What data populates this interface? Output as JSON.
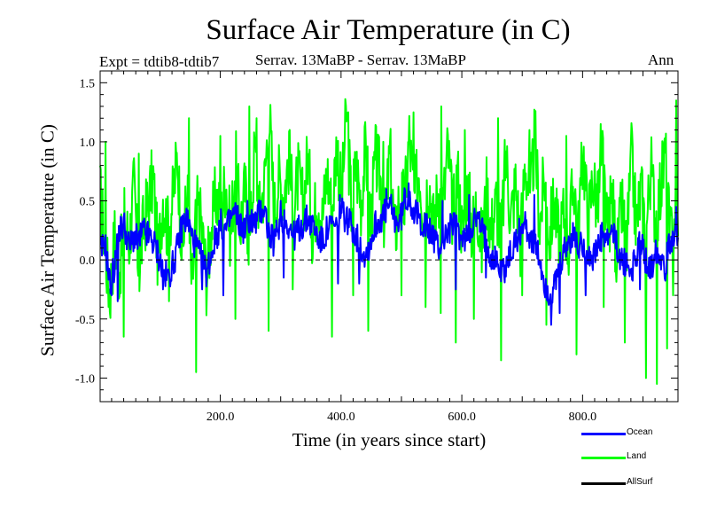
{
  "chart_data": {
    "type": "line",
    "title": "Surface Air Temperature (in C)",
    "subtitle_left": "Expt = tdtib8-tdtib7",
    "subtitle_center": "Serrav.   13MaBP - Serrav.   13MaBP",
    "subtitle_right": "Ann",
    "xlabel": "Time (in years since start)",
    "ylabel": "Surface Air Temperature (in C)",
    "xlim": [
      1,
      958
    ],
    "ylim": [
      -1.2,
      1.6
    ],
    "xticks_major": [
      200,
      400,
      600,
      800
    ],
    "xtick_labels": [
      "200.0",
      "400.0",
      "600.0",
      "800.0"
    ],
    "yticks_major": [
      -1.0,
      -0.5,
      0.0,
      0.5,
      1.0,
      1.5
    ],
    "ytick_labels": [
      "-1.0",
      "-0.5",
      "0.0",
      "0.5",
      "1.0",
      "1.5"
    ],
    "zero_line": "dashed",
    "series": [
      {
        "name": "Land",
        "color": "#00ff00",
        "step": 8,
        "x_start": 1,
        "values": [
          0.55,
          0.12,
          -0.3,
          0.2,
          -0.1,
          0.35,
          0.15,
          0.62,
          -0.1,
          0.3,
          0.5,
          0.7,
          0.0,
          0.55,
          0.25,
          0.5,
          0.9,
          0.05,
          0.6,
          -0.25,
          0.45,
          0.3,
          -0.15,
          0.25,
          0.55,
          0.35,
          0.7,
          0.2,
          0.85,
          0.3,
          0.6,
          0.1,
          0.95,
          0.4,
          0.65,
          1.3,
          0.4,
          0.7,
          0.55,
          0.85,
          0.45,
          0.7,
          0.45,
          0.9,
          0.2,
          0.6,
          0.35,
          0.75,
          0.4,
          1.0,
          0.5,
          1.25,
          0.45,
          0.8,
          0.5,
          0.95,
          0.3,
          0.85,
          0.7,
          0.3,
          0.9,
          0.2,
          0.55,
          0.45,
          1.05,
          0.5,
          0.8,
          0.4,
          0.7,
          0.3,
          0.6,
          0.45,
          0.95,
          0.35,
          0.75,
          0.2,
          0.65,
          0.25,
          0.5,
          0.1,
          0.6,
          0.25,
          0.5,
          0.15,
          0.9,
          0.35,
          0.65,
          0.15,
          0.85,
          0.45,
          1.05,
          0.3,
          0.7,
          0.2,
          0.5,
          0.15,
          0.4,
          0.1,
          0.7,
          0.25,
          0.95,
          0.3,
          0.7,
          0.45,
          0.9,
          0.2,
          0.55,
          0.0,
          0.45,
          0.1,
          0.85,
          0.3,
          0.6,
          0.2,
          0.8,
          0.35,
          0.6,
          0.9,
          0.15,
          0.4
        ],
        "minima": [
          [
            40,
            -0.65
          ],
          [
            115,
            -0.35
          ],
          [
            160,
            -0.95
          ],
          [
            225,
            -0.5
          ],
          [
            280,
            -0.6
          ],
          [
            320,
            -0.25
          ],
          [
            385,
            -0.65
          ],
          [
            420,
            -0.3
          ],
          [
            445,
            -0.6
          ],
          [
            500,
            -0.3
          ],
          [
            540,
            -0.4
          ],
          [
            565,
            -0.45
          ],
          [
            590,
            -0.7
          ],
          [
            620,
            -0.5
          ],
          [
            665,
            -0.85
          ],
          [
            700,
            -0.3
          ],
          [
            740,
            -0.55
          ],
          [
            790,
            -0.8
          ],
          [
            835,
            -0.4
          ],
          [
            870,
            -0.7
          ],
          [
            905,
            -1.0
          ],
          [
            923,
            -1.05
          ],
          [
            940,
            -0.75
          ],
          [
            950,
            -0.3
          ]
        ],
        "maxima": [
          [
            10,
            1.0
          ],
          [
            65,
            0.9
          ],
          [
            148,
            1.2
          ],
          [
            200,
            1.05
          ],
          [
            248,
            1.3
          ],
          [
            260,
            1.2
          ],
          [
            315,
            1.1
          ],
          [
            412,
            1.25
          ],
          [
            470,
            1.0
          ],
          [
            520,
            1.25
          ],
          [
            566,
            1.3
          ],
          [
            605,
            1.1
          ],
          [
            660,
            1.2
          ],
          [
            712,
            1.1
          ],
          [
            773,
            1.05
          ],
          [
            830,
            1.15
          ],
          [
            880,
            1.0
          ],
          [
            955,
            1.35
          ]
        ]
      },
      {
        "name": "Ocean",
        "color": "#0000ff",
        "step": 8,
        "x_start": 1,
        "values": [
          0.05,
          0.15,
          -0.2,
          -0.05,
          0.25,
          0.3,
          0.1,
          0.2,
          0.15,
          0.25,
          0.2,
          0.15,
          0.05,
          -0.1,
          -0.15,
          -0.05,
          0.1,
          0.3,
          0.35,
          0.2,
          0.1,
          0.0,
          -0.1,
          0.05,
          0.2,
          0.3,
          0.25,
          0.35,
          0.4,
          0.3,
          0.25,
          0.35,
          0.3,
          0.4,
          0.45,
          0.2,
          0.15,
          0.3,
          0.35,
          0.3,
          0.2,
          0.25,
          0.3,
          0.35,
          0.3,
          0.2,
          0.15,
          0.25,
          0.3,
          0.25,
          0.4,
          0.35,
          0.3,
          0.2,
          0.1,
          0.05,
          0.15,
          0.3,
          0.35,
          0.4,
          0.45,
          0.35,
          0.3,
          0.5,
          0.55,
          0.4,
          0.35,
          0.3,
          0.25,
          0.2,
          0.1,
          0.15,
          0.25,
          0.3,
          0.25,
          0.15,
          0.2,
          0.3,
          0.35,
          0.25,
          0.15,
          0.05,
          0.0,
          -0.1,
          -0.05,
          0.05,
          0.15,
          0.25,
          0.3,
          0.2,
          0.1,
          0.0,
          -0.2,
          -0.3,
          -0.25,
          -0.1,
          0.05,
          0.15,
          0.2,
          0.1,
          0.15,
          0.05,
          0.0,
          0.1,
          0.2,
          0.15,
          0.25,
          0.1,
          0.0,
          -0.05,
          -0.1,
          0.05,
          0.15,
          0.0,
          -0.1,
          0.1,
          0.05,
          -0.05,
          0.15,
          0.25
        ],
        "minima": [
          [
            20,
            -0.3
          ],
          [
            30,
            -0.35
          ],
          [
            105,
            -0.25
          ],
          [
            170,
            -0.25
          ],
          [
            205,
            -0.3
          ],
          [
            305,
            -0.15
          ],
          [
            395,
            -0.2
          ],
          [
            430,
            -0.2
          ],
          [
            590,
            -0.25
          ],
          [
            640,
            -0.15
          ],
          [
            748,
            -0.55
          ],
          [
            762,
            -0.45
          ],
          [
            805,
            -0.3
          ],
          [
            895,
            -0.25
          ]
        ],
        "maxima": [
          [
            245,
            0.5
          ],
          [
            300,
            0.5
          ],
          [
            398,
            0.55
          ],
          [
            475,
            0.6
          ],
          [
            512,
            0.65
          ],
          [
            568,
            0.5
          ],
          [
            612,
            0.55
          ],
          [
            720,
            0.55
          ],
          [
            955,
            0.45
          ]
        ]
      },
      {
        "name": "AllSurf",
        "color": "#000000",
        "values": []
      }
    ],
    "legend_position": "bottom-right"
  }
}
